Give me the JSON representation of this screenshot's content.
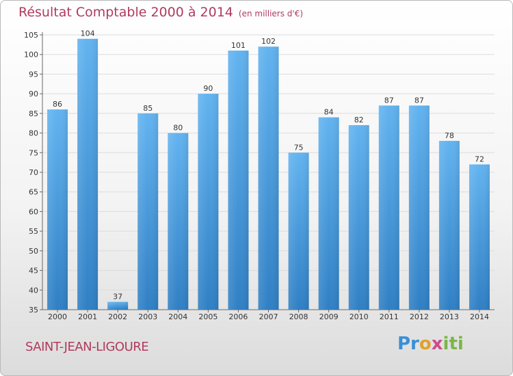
{
  "chart_data": {
    "type": "bar",
    "title": "Résultat Comptable 2000 à 2014",
    "subtitle": "(en milliers d'€)",
    "xlabel": "",
    "ylabel": "",
    "categories": [
      "2000",
      "2001",
      "2002",
      "2003",
      "2004",
      "2005",
      "2006",
      "2007",
      "2008",
      "2009",
      "2010",
      "2011",
      "2012",
      "2013",
      "2014"
    ],
    "values": [
      86,
      104,
      37,
      85,
      80,
      90,
      101,
      102,
      75,
      84,
      82,
      87,
      87,
      78,
      72
    ],
    "ylim": [
      35,
      105
    ],
    "yticks": [
      35,
      40,
      45,
      50,
      55,
      60,
      65,
      70,
      75,
      80,
      85,
      90,
      95,
      100,
      105
    ],
    "grid": true,
    "bar_color": "#4a9de0"
  },
  "footer": {
    "commune": "SAINT-JEAN-LIGOURE",
    "brand": {
      "p1": "Pr",
      "p2": "o",
      "p3": "x",
      "p4": "iti"
    }
  }
}
